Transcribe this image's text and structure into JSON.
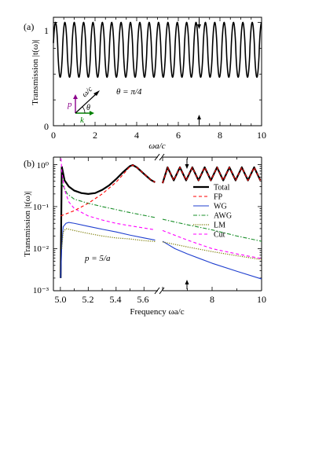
{
  "chart_data": [
    {
      "type": "line",
      "panel_label": "(a)",
      "xlabel": "ωa/c",
      "ylabel": "Transmission |t(ω)|",
      "xlim": [
        0,
        10
      ],
      "ylim": [
        0,
        1.05
      ],
      "x_ticks": [
        "0",
        "2",
        "4",
        "6",
        "8",
        "10"
      ],
      "y_ticks": [
        "0",
        "1"
      ],
      "annotation": "θ = π/4",
      "inset_labels": {
        "omega": "ω/c",
        "theta": "θ",
        "p": "p",
        "k": "k"
      },
      "inset_colors": {
        "p": "#8b008b",
        "k": "#008000",
        "omega": "#000000"
      },
      "arrow_marks_x": 7,
      "series": [
        {
          "color": "#000000",
          "period_x": 0.45,
          "first_peak_x": 0.1,
          "max": 1.0,
          "min": 0.47
        }
      ]
    },
    {
      "type": "line",
      "panel_label": "(b)",
      "xlabel": "Frequency ωa/c",
      "ylabel": "Transmission |t(ω)|",
      "yscale": "log",
      "ylim": [
        0.001,
        1.5
      ],
      "broken_x_axis": true,
      "xlim_left": [
        4.95,
        5.7
      ],
      "xlim_right": [
        6,
        10
      ],
      "x_ticks": [
        "5.0",
        "5.2",
        "5.4",
        "5.6",
        "8",
        "10"
      ],
      "y_ticks": [
        "10⁰",
        "10⁻¹",
        "10⁻²",
        "10⁻³"
      ],
      "annotation": "p = 5/a",
      "arrow_marks_x": 7,
      "legend_position": "right",
      "series": [
        {
          "name": "Total",
          "color": "#000000",
          "style": "solid-thick",
          "left": [
            [
              5.002,
              0.002
            ],
            [
              5.01,
              0.9
            ],
            [
              5.03,
              0.42
            ],
            [
              5.06,
              0.3
            ],
            [
              5.1,
              0.24
            ],
            [
              5.15,
              0.21
            ],
            [
              5.2,
              0.2
            ],
            [
              5.25,
              0.21
            ],
            [
              5.3,
              0.25
            ],
            [
              5.35,
              0.32
            ],
            [
              5.4,
              0.45
            ],
            [
              5.45,
              0.66
            ],
            [
              5.5,
              0.92
            ],
            [
              5.52,
              0.97
            ],
            [
              5.55,
              0.85
            ],
            [
              5.6,
              0.6
            ],
            [
              5.65,
              0.43
            ],
            [
              5.68,
              0.38
            ]
          ],
          "right": [
            [
              6,
              0.36
            ],
            [
              6.2,
              0.86
            ],
            [
              6.45,
              0.42
            ],
            [
              6.7,
              0.86
            ],
            [
              6.95,
              0.42
            ],
            [
              7.2,
              0.86
            ],
            [
              7.45,
              0.42
            ],
            [
              7.7,
              0.86
            ],
            [
              7.95,
              0.42
            ],
            [
              8.2,
              0.86
            ],
            [
              8.45,
              0.42
            ],
            [
              8.7,
              0.86
            ],
            [
              8.95,
              0.42
            ],
            [
              9.2,
              0.86
            ],
            [
              9.45,
              0.42
            ],
            [
              9.7,
              0.86
            ],
            [
              9.95,
              0.42
            ]
          ]
        },
        {
          "name": "FP",
          "color": "#ff0000",
          "style": "dashed",
          "left": [
            [
              5.002,
              0.06
            ],
            [
              5.1,
              0.08
            ],
            [
              5.2,
              0.12
            ],
            [
              5.3,
              0.2
            ],
            [
              5.4,
              0.38
            ],
            [
              5.45,
              0.58
            ],
            [
              5.5,
              0.9
            ],
            [
              5.52,
              0.97
            ],
            [
              5.55,
              0.85
            ],
            [
              5.6,
              0.6
            ],
            [
              5.65,
              0.43
            ],
            [
              5.68,
              0.38
            ]
          ],
          "right": [
            [
              6,
              0.36
            ],
            [
              6.2,
              0.86
            ],
            [
              6.45,
              0.42
            ],
            [
              6.7,
              0.86
            ],
            [
              6.95,
              0.42
            ],
            [
              7.2,
              0.86
            ],
            [
              7.45,
              0.42
            ],
            [
              7.7,
              0.86
            ],
            [
              7.95,
              0.42
            ],
            [
              8.2,
              0.86
            ],
            [
              8.45,
              0.42
            ],
            [
              8.7,
              0.86
            ],
            [
              8.95,
              0.42
            ],
            [
              9.2,
              0.86
            ],
            [
              9.45,
              0.42
            ],
            [
              9.7,
              0.86
            ],
            [
              9.95,
              0.42
            ]
          ]
        },
        {
          "name": "WG",
          "color": "#1f3fcf",
          "style": "solid",
          "left": [
            [
              5.002,
              0.002
            ],
            [
              5.01,
              0.012
            ],
            [
              5.02,
              0.033
            ],
            [
              5.04,
              0.04
            ],
            [
              5.06,
              0.042
            ],
            [
              5.1,
              0.04
            ],
            [
              5.2,
              0.034
            ],
            [
              5.3,
              0.029
            ],
            [
              5.4,
              0.025
            ],
            [
              5.5,
              0.021
            ],
            [
              5.6,
              0.018
            ],
            [
              5.68,
              0.016
            ]
          ],
          "right": [
            [
              6,
              0.015
            ],
            [
              6.5,
              0.01
            ],
            [
              7,
              0.0075
            ],
            [
              8,
              0.0045
            ],
            [
              9,
              0.0029
            ],
            [
              10,
              0.0019
            ]
          ]
        },
        {
          "name": "AWG",
          "color": "#1a8f2a",
          "style": "dash-dot",
          "left": [
            [
              5.01,
              0.35
            ],
            [
              5.05,
              0.2
            ],
            [
              5.1,
              0.15
            ],
            [
              5.2,
              0.12
            ],
            [
              5.3,
              0.1
            ],
            [
              5.4,
              0.085
            ],
            [
              5.5,
              0.072
            ],
            [
              5.6,
              0.062
            ],
            [
              5.68,
              0.055
            ]
          ],
          "right": [
            [
              6,
              0.05
            ],
            [
              7,
              0.037
            ],
            [
              8,
              0.028
            ],
            [
              9,
              0.02
            ],
            [
              10,
              0.015
            ]
          ]
        },
        {
          "name": "LM",
          "color": "#7a7a00",
          "style": "dotted",
          "left": [
            [
              5.01,
              0.01
            ],
            [
              5.02,
              0.025
            ],
            [
              5.04,
              0.03
            ],
            [
              5.1,
              0.027
            ],
            [
              5.2,
              0.023
            ],
            [
              5.3,
              0.02
            ],
            [
              5.4,
              0.018
            ],
            [
              5.5,
              0.017
            ],
            [
              5.6,
              0.0155
            ],
            [
              5.68,
              0.0148
            ]
          ],
          "right": [
            [
              6,
              0.0145
            ],
            [
              7,
              0.011
            ],
            [
              8,
              0.0085
            ],
            [
              9,
              0.0068
            ],
            [
              10,
              0.0055
            ]
          ]
        },
        {
          "name": "Cut",
          "color": "#ff00ff",
          "style": "dashed",
          "left": [
            [
              5.005,
              1.4
            ],
            [
              5.01,
              0.7
            ],
            [
              5.03,
              0.25
            ],
            [
              5.06,
              0.13
            ],
            [
              5.1,
              0.09
            ],
            [
              5.2,
              0.06
            ],
            [
              5.3,
              0.048
            ],
            [
              5.4,
              0.04
            ],
            [
              5.5,
              0.035
            ],
            [
              5.6,
              0.031
            ],
            [
              5.68,
              0.028
            ]
          ],
          "right": [
            [
              6,
              0.027
            ],
            [
              7,
              0.016
            ],
            [
              8,
              0.01
            ],
            [
              9,
              0.0075
            ],
            [
              10,
              0.0058
            ]
          ]
        }
      ]
    }
  ]
}
